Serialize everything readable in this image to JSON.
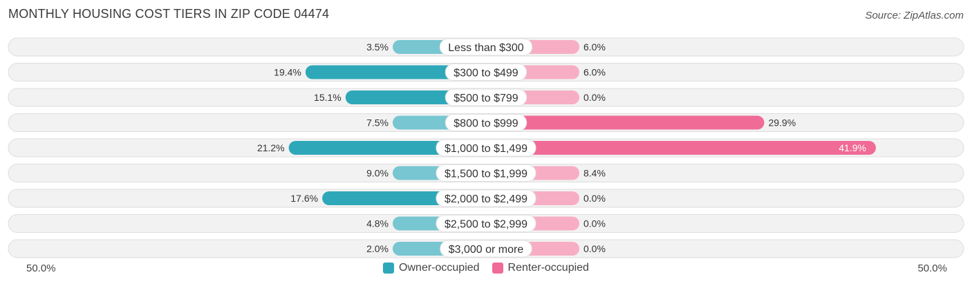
{
  "title": "MONTHLY HOUSING COST TIERS IN ZIP CODE 04474",
  "source": "Source: ZipAtlas.com",
  "axis": {
    "left_label": "50.0%",
    "right_label": "50.0%"
  },
  "legend": [
    {
      "label": "Owner-occupied",
      "color": "#2ea8b8"
    },
    {
      "label": "Renter-occupied",
      "color": "#f06b96"
    }
  ],
  "chart_data": {
    "type": "bar",
    "orientation": "horizontal-diverging",
    "title": "MONTHLY HOUSING COST TIERS IN ZIP CODE 04474",
    "xlim": [
      -50,
      50
    ],
    "categories": [
      "Less than $300",
      "$300 to $499",
      "$500 to $799",
      "$800 to $999",
      "$1,000 to $1,499",
      "$1,500 to $1,999",
      "$2,000 to $2,499",
      "$2,500 to $2,999",
      "$3,000 or more"
    ],
    "series": [
      {
        "name": "Owner-occupied",
        "color": "#2ea8b8",
        "values": [
          3.5,
          19.4,
          15.1,
          7.5,
          21.2,
          9.0,
          17.6,
          4.8,
          2.0
        ],
        "labels": [
          "3.5%",
          "19.4%",
          "15.1%",
          "7.5%",
          "21.2%",
          "9.0%",
          "17.6%",
          "4.8%",
          "2.0%"
        ]
      },
      {
        "name": "Renter-occupied",
        "color": "#f06b96",
        "values": [
          6.0,
          6.0,
          0.0,
          29.9,
          41.9,
          8.4,
          0.0,
          0.0,
          0.0
        ],
        "labels": [
          "6.0%",
          "6.0%",
          "0.0%",
          "29.9%",
          "41.9%",
          "8.4%",
          "0.0%",
          "0.0%",
          "0.0%"
        ]
      }
    ]
  }
}
